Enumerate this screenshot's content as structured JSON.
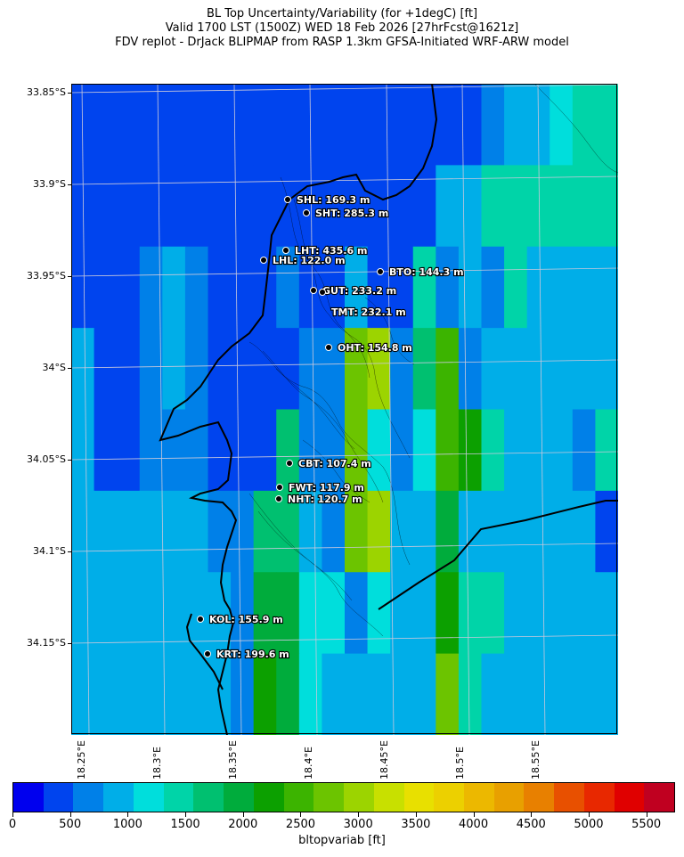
{
  "title": {
    "line1": "BL Top Uncertainty/Variability (for +1degC) [ft]",
    "line2": "Valid 1700 LST (1500Z) WED 18 Feb 2026 [27hrFcst@1621z]",
    "line3": "FDV replot - DrJack BLIPMAP from RASP 1.3km GFSA-Initiated WRF-ARW model"
  },
  "lat_labels": [
    "33.85°S",
    "33.9°S",
    "33.95°S",
    "34°S",
    "34.05°S",
    "34.1°S",
    "34.15°S"
  ],
  "lon_labels": [
    "18.25°E",
    "18.3°E",
    "18.35°E",
    "18.4°E",
    "18.45°E",
    "18.5°E",
    "18.55°E"
  ],
  "stations": [
    {
      "code": "SHL",
      "value": "169.3 m",
      "label": "SHL: 169.3 m"
    },
    {
      "code": "SHT",
      "value": "285.3 m",
      "label": "SHT: 285.3 m"
    },
    {
      "code": "LHT",
      "value": "435.6 m",
      "label": "LHT: 435.6 m"
    },
    {
      "code": "LHL",
      "value": "122.0 m",
      "label": "LHL: 122.0 m"
    },
    {
      "code": "BTO",
      "value": "144.3 m",
      "label": "BTO: 144.3 m"
    },
    {
      "code": "GUT",
      "value": "233.2 m",
      "label": "GUT: 233.2 m"
    },
    {
      "code": "TMT",
      "value": "232.1 m",
      "label": "TMT: 232.1 m"
    },
    {
      "code": "OHT",
      "value": "154.8 m",
      "label": "OHT: 154.8 m"
    },
    {
      "code": "CBT",
      "value": "107.4 m",
      "label": "CBT: 107.4 m"
    },
    {
      "code": "FWT",
      "value": "117.9 m",
      "label": "FWT: 117.9 m"
    },
    {
      "code": "NHT",
      "value": "120.7 m",
      "label": "NHT: 120.7 m"
    },
    {
      "code": "KOL",
      "value": "155.9 m",
      "label": "KOL: 155.9 m"
    },
    {
      "code": "KRT",
      "value": "199.6 m",
      "label": "KRT: 199.6 m"
    }
  ],
  "colorbar": {
    "label": "bltopvariab [ft]",
    "ticks": [
      "0",
      "500",
      "1000",
      "1500",
      "2000",
      "2500",
      "3000",
      "3500",
      "4000",
      "4500",
      "5000",
      "5500"
    ],
    "colors": [
      "#0000ee",
      "#0044ee",
      "#0080e8",
      "#00aee8",
      "#00dedc",
      "#00d4a8",
      "#00c070",
      "#00ac3c",
      "#0ca000",
      "#3cb400",
      "#6cc400",
      "#9cd400",
      "#c8e000",
      "#e8e000",
      "#ecd000",
      "#ecb800",
      "#e8a000",
      "#e88000",
      "#e85000",
      "#e82800",
      "#e00000",
      "#c00020"
    ]
  },
  "chart_data": {
    "type": "heatmap",
    "title": "BL Top Uncertainty/Variability (for +1degC) [ft]",
    "variable": "bltopvariab",
    "units": "ft",
    "xlabel": "",
    "ylabel": "",
    "lon_range": [
      18.22,
      18.58
    ],
    "lat_range": [
      -34.195,
      -33.855
    ],
    "value_range": [
      0,
      5750
    ],
    "grid_values_ft": [
      [
        250,
        250,
        250,
        250,
        250,
        250,
        250,
        250,
        250,
        250,
        250,
        250,
        250,
        250,
        250,
        250,
        250,
        250,
        500,
        750,
        750,
        1000,
        1250,
        1250
      ],
      [
        250,
        250,
        250,
        250,
        250,
        250,
        250,
        250,
        250,
        250,
        250,
        250,
        250,
        250,
        250,
        250,
        750,
        750,
        1250,
        1250,
        1250,
        1250,
        1250,
        1250
      ],
      [
        250,
        250,
        250,
        500,
        750,
        500,
        250,
        250,
        250,
        500,
        250,
        250,
        750,
        250,
        250,
        1250,
        500,
        750,
        500,
        1250,
        750,
        750,
        750,
        750
      ],
      [
        750,
        250,
        250,
        500,
        750,
        500,
        250,
        250,
        250,
        250,
        500,
        500,
        2500,
        2750,
        500,
        1500,
        2250,
        500,
        750,
        750,
        750,
        750,
        750,
        750
      ],
      [
        750,
        250,
        250,
        500,
        500,
        500,
        250,
        250,
        250,
        1500,
        500,
        500,
        2500,
        1000,
        500,
        1000,
        2250,
        2000,
        1250,
        750,
        750,
        750,
        500,
        1250
      ],
      [
        750,
        750,
        750,
        750,
        750,
        750,
        500,
        500,
        1500,
        1500,
        750,
        500,
        2500,
        2750,
        750,
        750,
        1750,
        750,
        750,
        750,
        750,
        750,
        750,
        250
      ],
      [
        750,
        750,
        750,
        750,
        750,
        750,
        750,
        500,
        1750,
        1750,
        1000,
        1000,
        500,
        1000,
        750,
        750,
        2000,
        1250,
        1250,
        750,
        750,
        750,
        750,
        750
      ],
      [
        750,
        750,
        750,
        750,
        750,
        750,
        750,
        500,
        2000,
        1750,
        1000,
        750,
        750,
        750,
        750,
        750,
        2500,
        1250,
        750,
        750,
        750,
        750,
        750,
        750
      ]
    ],
    "station_values_m": {
      "SHL": 169.3,
      "SHT": 285.3,
      "LHT": 435.6,
      "LHL": 122.0,
      "BTO": 144.3,
      "GUT": 233.2,
      "TMT": 232.1,
      "OHT": 154.8,
      "CBT": 107.4,
      "FWT": 117.9,
      "NHT": 120.7,
      "KOL": 155.9,
      "KRT": 199.6
    }
  }
}
